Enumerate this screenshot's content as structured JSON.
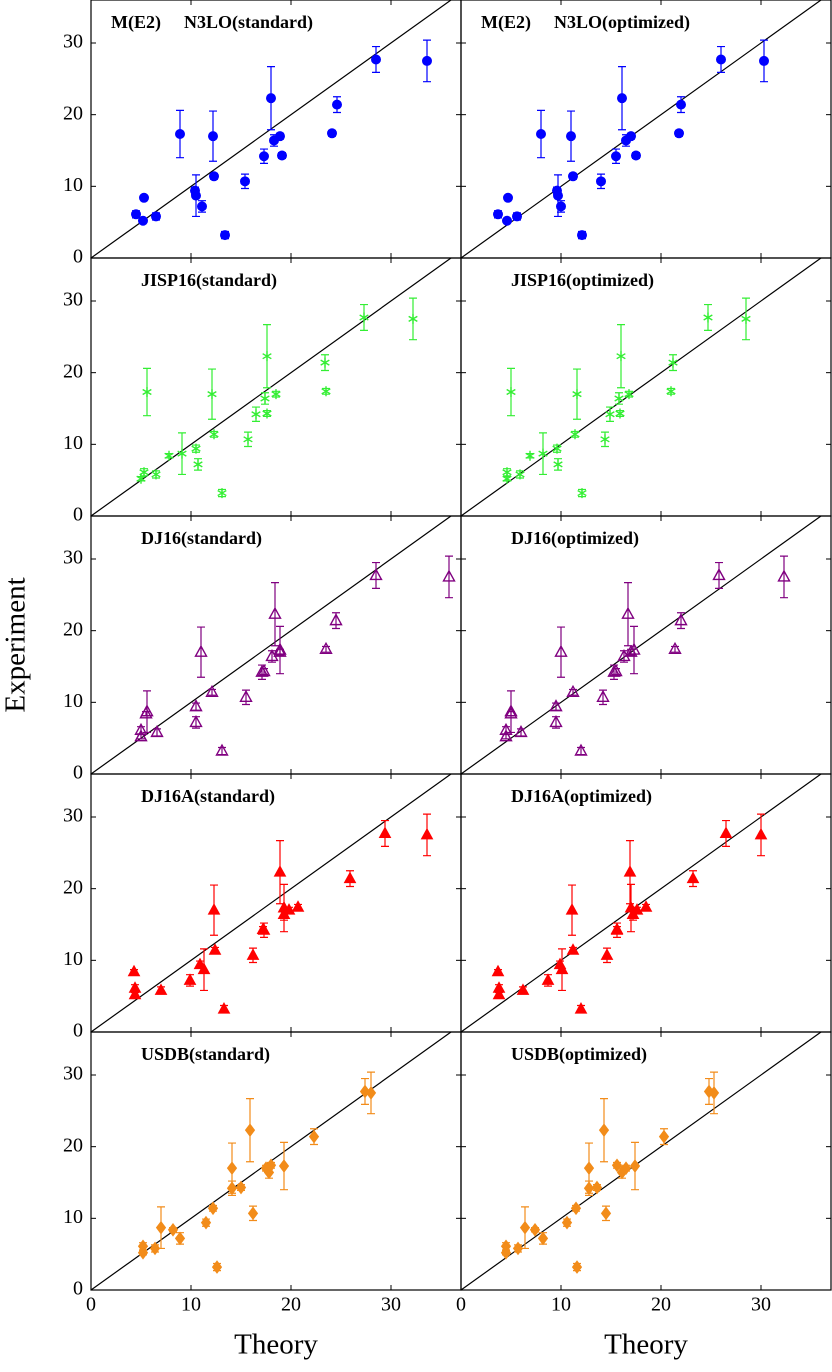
{
  "chart_data": [
    {
      "type": "scatter",
      "annotation": "M(E2)",
      "title": "N3LO(standard)",
      "color": "#0000ff",
      "marker": "circle",
      "x": [
        4.5,
        5.2,
        5.3,
        6.5,
        8.9,
        10.4,
        10.5,
        11.1,
        12.2,
        12.3,
        13.4,
        15.4,
        17.3,
        18.0,
        18.3,
        18.9,
        19.1,
        24.1,
        24.6,
        28.5,
        33.6
      ],
      "values": [
        6.1,
        5.2,
        8.4,
        5.8,
        17.3,
        9.4,
        8.7,
        7.2,
        17.0,
        11.4,
        3.2,
        10.7,
        14.2,
        22.3,
        16.4,
        17.0,
        14.3,
        17.4,
        21.4,
        27.7,
        27.5
      ],
      "errors": [
        0.5,
        0.3,
        0.3,
        0.5,
        3.3,
        0.5,
        2.9,
        0.8,
        3.5,
        0.4,
        0.5,
        1.0,
        1.0,
        4.4,
        0.8,
        0.4,
        0.4,
        0.4,
        1.1,
        1.8,
        2.9
      ],
      "xlim": [
        0,
        37
      ],
      "ylim": [
        0,
        36
      ],
      "xticks": [
        0,
        10,
        20,
        30
      ],
      "yticks": [
        0,
        10,
        20,
        30
      ]
    },
    {
      "type": "scatter",
      "annotation": "M(E2)",
      "title": "N3LO(optimized)",
      "color": "#0000ff",
      "marker": "circle",
      "x": [
        3.7,
        4.6,
        4.7,
        5.6,
        8.0,
        9.6,
        9.7,
        10.0,
        11.0,
        11.2,
        12.1,
        14.0,
        15.5,
        16.1,
        16.5,
        17.0,
        17.5,
        21.8,
        22.0,
        26.0,
        30.3
      ],
      "values": [
        6.1,
        5.2,
        8.4,
        5.8,
        17.3,
        9.4,
        8.7,
        7.2,
        17.0,
        11.4,
        3.2,
        10.7,
        14.2,
        22.3,
        16.4,
        17.0,
        14.3,
        17.4,
        21.4,
        27.7,
        27.5
      ],
      "errors": [
        0.5,
        0.3,
        0.3,
        0.5,
        3.3,
        0.5,
        2.9,
        0.8,
        3.5,
        0.4,
        0.5,
        1.0,
        1.0,
        4.4,
        0.8,
        0.4,
        0.4,
        0.4,
        1.1,
        1.8,
        2.9
      ],
      "xlim": [
        0,
        37
      ],
      "ylim": [
        0,
        36
      ],
      "xticks": [
        0,
        10,
        20,
        30
      ],
      "yticks": [
        0,
        10,
        20,
        30
      ]
    },
    {
      "type": "scatter",
      "title": "JISP16(standard)",
      "color": "#33ee33",
      "marker": "star",
      "x": [
        5.3,
        5.0,
        7.8,
        6.5,
        5.6,
        10.5,
        9.1,
        10.7,
        12.1,
        12.3,
        13.1,
        15.7,
        16.5,
        17.6,
        17.4,
        18.5,
        17.6,
        23.5,
        23.4,
        27.3,
        32.2
      ],
      "values": [
        6.1,
        5.2,
        8.4,
        5.8,
        17.3,
        9.4,
        8.7,
        7.2,
        17.0,
        11.4,
        3.2,
        10.7,
        14.2,
        22.3,
        16.4,
        17.0,
        14.3,
        17.4,
        21.4,
        27.7,
        27.5
      ],
      "errors": [
        0.5,
        0.3,
        0.3,
        0.5,
        3.3,
        0.5,
        2.9,
        0.8,
        3.5,
        0.4,
        0.5,
        1.0,
        1.0,
        4.4,
        0.8,
        0.4,
        0.4,
        0.4,
        1.1,
        1.8,
        2.9
      ],
      "xlim": [
        0,
        37
      ],
      "ylim": [
        0,
        36
      ],
      "xticks": [
        0,
        10,
        20,
        30
      ],
      "yticks": [
        0,
        10,
        20,
        30
      ]
    },
    {
      "type": "scatter",
      "title": "JISP16(optimized)",
      "color": "#33ee33",
      "marker": "star",
      "x": [
        4.6,
        4.6,
        6.9,
        5.9,
        5.0,
        9.6,
        8.2,
        9.7,
        11.6,
        11.4,
        12.1,
        14.4,
        14.9,
        16.0,
        15.8,
        16.8,
        15.9,
        21.0,
        21.2,
        24.7,
        28.5
      ],
      "values": [
        6.1,
        5.2,
        8.4,
        5.8,
        17.3,
        9.4,
        8.7,
        7.2,
        17.0,
        11.4,
        3.2,
        10.7,
        14.2,
        22.3,
        16.4,
        17.0,
        14.3,
        17.4,
        21.4,
        27.7,
        27.5
      ],
      "errors": [
        0.5,
        0.3,
        0.3,
        0.5,
        3.3,
        0.5,
        2.9,
        0.8,
        3.5,
        0.4,
        0.5,
        1.0,
        1.0,
        4.4,
        0.8,
        0.4,
        0.4,
        0.4,
        1.1,
        1.8,
        2.9
      ],
      "xlim": [
        0,
        37
      ],
      "ylim": [
        0,
        36
      ],
      "xticks": [
        0,
        10,
        20,
        30
      ],
      "yticks": [
        0,
        10,
        20,
        30
      ]
    },
    {
      "type": "scatter",
      "title": "DJ16(standard)",
      "ylabel": "Experiment",
      "color": "#800080",
      "marker": "triangle-open",
      "x": [
        5.0,
        5.0,
        5.5,
        6.6,
        18.9,
        10.5,
        5.6,
        10.5,
        11.0,
        12.1,
        13.1,
        15.5,
        17.1,
        18.4,
        18.1,
        18.9,
        17.3,
        23.5,
        24.5,
        28.5,
        35.8
      ],
      "values": [
        6.1,
        5.2,
        8.4,
        5.8,
        17.3,
        9.4,
        8.7,
        7.2,
        17.0,
        11.4,
        3.2,
        10.7,
        14.2,
        22.3,
        16.4,
        17.0,
        14.3,
        17.4,
        21.4,
        27.7,
        27.5
      ],
      "errors": [
        0.5,
        0.3,
        0.3,
        0.5,
        3.3,
        0.5,
        2.9,
        0.8,
        3.5,
        0.4,
        0.5,
        1.0,
        1.0,
        4.4,
        0.8,
        0.4,
        0.4,
        0.4,
        1.1,
        1.8,
        2.9
      ],
      "xlim": [
        0,
        37
      ],
      "ylim": [
        0,
        36
      ],
      "xticks": [
        0,
        10,
        20,
        30
      ],
      "yticks": [
        0,
        10,
        20,
        30
      ]
    },
    {
      "type": "scatter",
      "title": "DJ16(optimized)",
      "color": "#800080",
      "marker": "triangle-open",
      "x": [
        4.5,
        4.5,
        5.0,
        6.0,
        17.3,
        9.5,
        5.0,
        9.5,
        10.0,
        11.2,
        12.0,
        14.2,
        15.3,
        16.7,
        16.3,
        17.0,
        15.5,
        21.4,
        22.0,
        25.8,
        32.3
      ],
      "values": [
        6.1,
        5.2,
        8.4,
        5.8,
        17.3,
        9.4,
        8.7,
        7.2,
        17.0,
        11.4,
        3.2,
        10.7,
        14.2,
        22.3,
        16.4,
        17.0,
        14.3,
        17.4,
        21.4,
        27.7,
        27.5
      ],
      "errors": [
        0.5,
        0.3,
        0.3,
        0.5,
        3.3,
        0.5,
        2.9,
        0.8,
        3.5,
        0.4,
        0.5,
        1.0,
        1.0,
        4.4,
        0.8,
        0.4,
        0.4,
        0.4,
        1.1,
        1.8,
        2.9
      ],
      "xlim": [
        0,
        37
      ],
      "ylim": [
        0,
        36
      ],
      "xticks": [
        0,
        10,
        20,
        30
      ],
      "yticks": [
        0,
        10,
        20,
        30
      ]
    },
    {
      "type": "scatter",
      "title": "DJ16A(standard)",
      "color": "#ff0000",
      "marker": "triangle",
      "x": [
        4.4,
        4.4,
        4.3,
        7.0,
        19.3,
        10.9,
        11.3,
        9.9,
        12.3,
        12.4,
        13.3,
        16.2,
        17.3,
        18.9,
        19.3,
        19.8,
        17.2,
        20.7,
        25.9,
        29.4,
        33.6
      ],
      "values": [
        6.1,
        5.2,
        8.4,
        5.8,
        17.3,
        9.4,
        8.7,
        7.2,
        17.0,
        11.4,
        3.2,
        10.7,
        14.2,
        22.3,
        16.4,
        17.0,
        14.3,
        17.4,
        21.4,
        27.7,
        27.5
      ],
      "errors": [
        0.5,
        0.3,
        0.3,
        0.5,
        3.3,
        0.5,
        2.9,
        0.8,
        3.5,
        0.4,
        0.5,
        1.0,
        1.0,
        4.4,
        0.8,
        0.4,
        0.4,
        0.4,
        1.1,
        1.8,
        2.9
      ],
      "xlim": [
        0,
        37
      ],
      "ylim": [
        0,
        36
      ],
      "xticks": [
        0,
        10,
        20,
        30
      ],
      "yticks": [
        0,
        10,
        20,
        30
      ]
    },
    {
      "type": "scatter",
      "title": "DJ16A(optimized)",
      "color": "#ff0000",
      "marker": "triangle",
      "x": [
        3.8,
        3.8,
        3.7,
        6.2,
        17.0,
        9.9,
        10.1,
        8.7,
        11.1,
        11.2,
        12.0,
        14.6,
        15.6,
        16.9,
        17.2,
        17.6,
        15.6,
        18.5,
        23.2,
        26.5,
        30.0
      ],
      "values": [
        6.1,
        5.2,
        8.4,
        5.8,
        17.3,
        9.4,
        8.7,
        7.2,
        17.0,
        11.4,
        3.2,
        10.7,
        14.2,
        22.3,
        16.4,
        17.0,
        14.3,
        17.4,
        21.4,
        27.7,
        27.5
      ],
      "errors": [
        0.5,
        0.3,
        0.3,
        0.5,
        3.3,
        0.5,
        2.9,
        0.8,
        3.5,
        0.4,
        0.5,
        1.0,
        1.0,
        4.4,
        0.8,
        0.4,
        0.4,
        0.4,
        1.1,
        1.8,
        2.9
      ],
      "xlim": [
        0,
        37
      ],
      "ylim": [
        0,
        36
      ],
      "xticks": [
        0,
        10,
        20,
        30
      ],
      "yticks": [
        0,
        10,
        20,
        30
      ]
    },
    {
      "type": "scatter",
      "title": "USDB(standard)",
      "xlabel": "Theory",
      "color": "#f28c1a",
      "marker": "diamond",
      "x": [
        5.2,
        5.2,
        8.2,
        6.4,
        19.3,
        11.5,
        7.0,
        8.9,
        14.1,
        12.2,
        12.6,
        16.2,
        14.1,
        15.9,
        17.8,
        17.5,
        15.0,
        18.0,
        22.3,
        27.4,
        28.0
      ],
      "values": [
        6.1,
        5.2,
        8.4,
        5.8,
        17.3,
        9.4,
        8.7,
        7.2,
        17.0,
        11.4,
        3.2,
        10.7,
        14.2,
        22.3,
        16.4,
        17.0,
        14.3,
        17.4,
        21.4,
        27.7,
        27.5
      ],
      "errors": [
        0.5,
        0.3,
        0.3,
        0.5,
        3.3,
        0.5,
        2.9,
        0.8,
        3.5,
        0.4,
        0.5,
        1.0,
        1.0,
        4.4,
        0.8,
        0.4,
        0.4,
        0.4,
        1.1,
        1.8,
        2.9
      ],
      "xlim": [
        0,
        37
      ],
      "ylim": [
        0,
        36
      ],
      "xticks": [
        0,
        10,
        20,
        30
      ],
      "yticks": [
        0,
        10,
        20,
        30
      ]
    },
    {
      "type": "scatter",
      "title": "USDB(optimized)",
      "xlabel": "Theory",
      "color": "#f28c1a",
      "marker": "diamond",
      "x": [
        4.5,
        4.5,
        7.4,
        5.7,
        17.4,
        10.6,
        6.4,
        8.2,
        12.8,
        11.5,
        11.6,
        14.5,
        12.8,
        14.3,
        16.1,
        16.5,
        13.6,
        15.6,
        20.3,
        24.8,
        25.3
      ],
      "values": [
        6.1,
        5.2,
        8.4,
        5.8,
        17.3,
        9.4,
        8.7,
        7.2,
        17.0,
        11.4,
        3.2,
        10.7,
        14.2,
        22.3,
        16.4,
        17.0,
        14.3,
        17.4,
        21.4,
        27.7,
        27.5
      ],
      "errors": [
        0.5,
        0.3,
        0.3,
        0.5,
        3.3,
        0.5,
        2.9,
        0.8,
        3.5,
        0.4,
        0.5,
        1.0,
        1.0,
        4.4,
        0.8,
        0.4,
        0.4,
        0.4,
        1.1,
        1.8,
        2.9
      ],
      "xlim": [
        0,
        37
      ],
      "ylim": [
        0,
        36
      ],
      "xticks": [
        0,
        10,
        20,
        30
      ],
      "yticks": [
        0,
        10,
        20,
        30
      ]
    }
  ]
}
